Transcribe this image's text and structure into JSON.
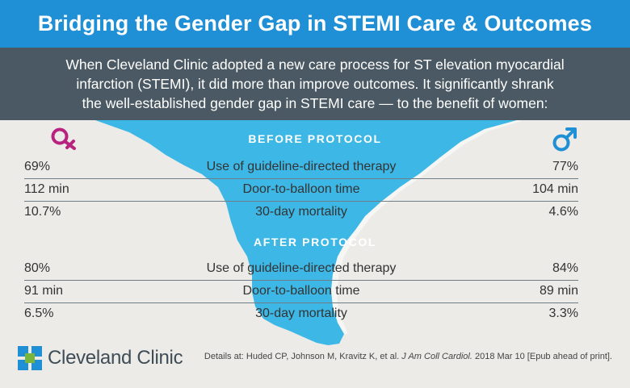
{
  "title": "Bridging the Gender Gap in STEMI Care & Outcomes",
  "intro_lines": [
    "When Cleveland Clinic adopted a new care process for ST elevation myocardial",
    "infarction (STEMI), it did more than improve outcomes. It significantly shrank",
    "the well-established gender gap in STEMI care — to the benefit of women:"
  ],
  "symbols": {
    "left": "female-symbol",
    "right": "male-symbol"
  },
  "before": {
    "heading": "BEFORE PROTOCOL",
    "rows": [
      {
        "women": "69%",
        "metric": "Use of guideline-directed therapy",
        "men": "77%"
      },
      {
        "women": "112 min",
        "metric": "Door-to-balloon time",
        "men": "104 min"
      },
      {
        "women": "10.7%",
        "metric": "30-day mortality",
        "men": "4.6%"
      }
    ]
  },
  "after": {
    "heading": "AFTER PROTOCOL",
    "rows": [
      {
        "women": "80%",
        "metric": "Use of guideline-directed therapy",
        "men": "84%"
      },
      {
        "women": "91 min",
        "metric": "Door-to-balloon time",
        "men": "89 min"
      },
      {
        "women": "6.5%",
        "metric": "30-day mortality",
        "men": "3.3%"
      }
    ]
  },
  "logo": {
    "name": "Cleveland Clinic"
  },
  "citation": {
    "prefix": "Details at: Huded CP, Johnson M, Kravitz K, et al.",
    "journal": "J Am Coll Cardiol.",
    "suffix": "2018 Mar 10 [Epub ahead of print]."
  },
  "colors": {
    "title_bar": "#1f8fd6",
    "intro_bar": "#4a5963",
    "river": "#3db8e6",
    "female_symbol": "#b7237e",
    "male_symbol": "#1f8fd6",
    "background": "#ecebe8"
  }
}
